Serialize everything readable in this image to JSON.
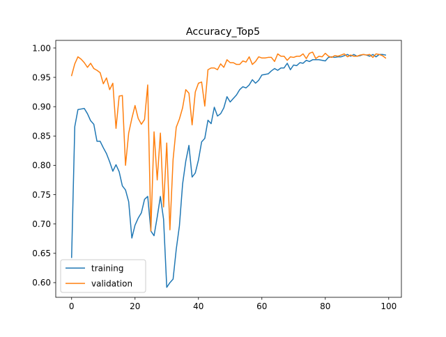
{
  "chart_data": {
    "type": "line",
    "title": "Accuracy_Top5",
    "xlabel": "",
    "ylabel": "",
    "xlim": [
      -5,
      104
    ],
    "ylim": [
      0.575,
      1.013
    ],
    "xticks": [
      0,
      20,
      40,
      60,
      80,
      100
    ],
    "yticks": [
      0.6,
      0.65,
      0.7,
      0.75,
      0.8,
      0.85,
      0.9,
      0.95,
      1.0
    ],
    "ytick_labels": [
      "0.60",
      "0.65",
      "0.70",
      "0.75",
      "0.80",
      "0.85",
      "0.90",
      "0.95",
      "1.00"
    ],
    "grid": false,
    "legend_position": "lower-left",
    "series": [
      {
        "name": "training",
        "color": "#1f77b4",
        "values": [
          0.643,
          0.866,
          0.895,
          0.896,
          0.897,
          0.888,
          0.876,
          0.87,
          0.841,
          0.841,
          0.83,
          0.82,
          0.806,
          0.79,
          0.801,
          0.789,
          0.765,
          0.758,
          0.738,
          0.676,
          0.698,
          0.71,
          0.719,
          0.742,
          0.747,
          0.688,
          0.68,
          0.712,
          0.747,
          0.708,
          0.592,
          0.6,
          0.606,
          0.657,
          0.697,
          0.768,
          0.807,
          0.834,
          0.78,
          0.787,
          0.809,
          0.84,
          0.846,
          0.877,
          0.871,
          0.899,
          0.884,
          0.888,
          0.898,
          0.917,
          0.908,
          0.914,
          0.92,
          0.929,
          0.934,
          0.932,
          0.937,
          0.946,
          0.94,
          0.945,
          0.954,
          0.955,
          0.956,
          0.961,
          0.965,
          0.962,
          0.966,
          0.966,
          0.974,
          0.963,
          0.971,
          0.97,
          0.975,
          0.974,
          0.979,
          0.977,
          0.98,
          0.98,
          0.98,
          0.979,
          0.978,
          0.984,
          0.985,
          0.984,
          0.985,
          0.985,
          0.987,
          0.989,
          0.986,
          0.989,
          0.986,
          0.987,
          0.989,
          0.988,
          0.986,
          0.989,
          0.985,
          0.989,
          0.989,
          0.988
        ]
      },
      {
        "name": "validation",
        "color": "#ff7f0e",
        "values": [
          0.953,
          0.973,
          0.985,
          0.981,
          0.975,
          0.967,
          0.974,
          0.965,
          0.962,
          0.958,
          0.939,
          0.949,
          0.929,
          0.94,
          0.863,
          0.918,
          0.919,
          0.8,
          0.855,
          0.88,
          0.902,
          0.88,
          0.87,
          0.878,
          0.937,
          0.688,
          0.857,
          0.775,
          0.855,
          0.729,
          0.838,
          0.69,
          0.81,
          0.865,
          0.879,
          0.898,
          0.929,
          0.923,
          0.869,
          0.925,
          0.94,
          0.942,
          0.901,
          0.963,
          0.966,
          0.966,
          0.963,
          0.973,
          0.967,
          0.98,
          0.975,
          0.975,
          0.972,
          0.972,
          0.978,
          0.976,
          0.985,
          0.972,
          0.977,
          0.985,
          0.983,
          0.983,
          0.984,
          0.984,
          0.977,
          0.99,
          0.986,
          0.986,
          0.979,
          0.985,
          0.984,
          0.986,
          0.986,
          0.99,
          0.982,
          0.991,
          0.993,
          0.982,
          0.986,
          0.985,
          0.991,
          0.986,
          0.984,
          0.987,
          0.986,
          0.988,
          0.99,
          0.985,
          0.988,
          0.986,
          0.986,
          0.988,
          0.989,
          0.988,
          0.989,
          0.984,
          0.99,
          0.989,
          0.987,
          0.983
        ]
      }
    ]
  }
}
